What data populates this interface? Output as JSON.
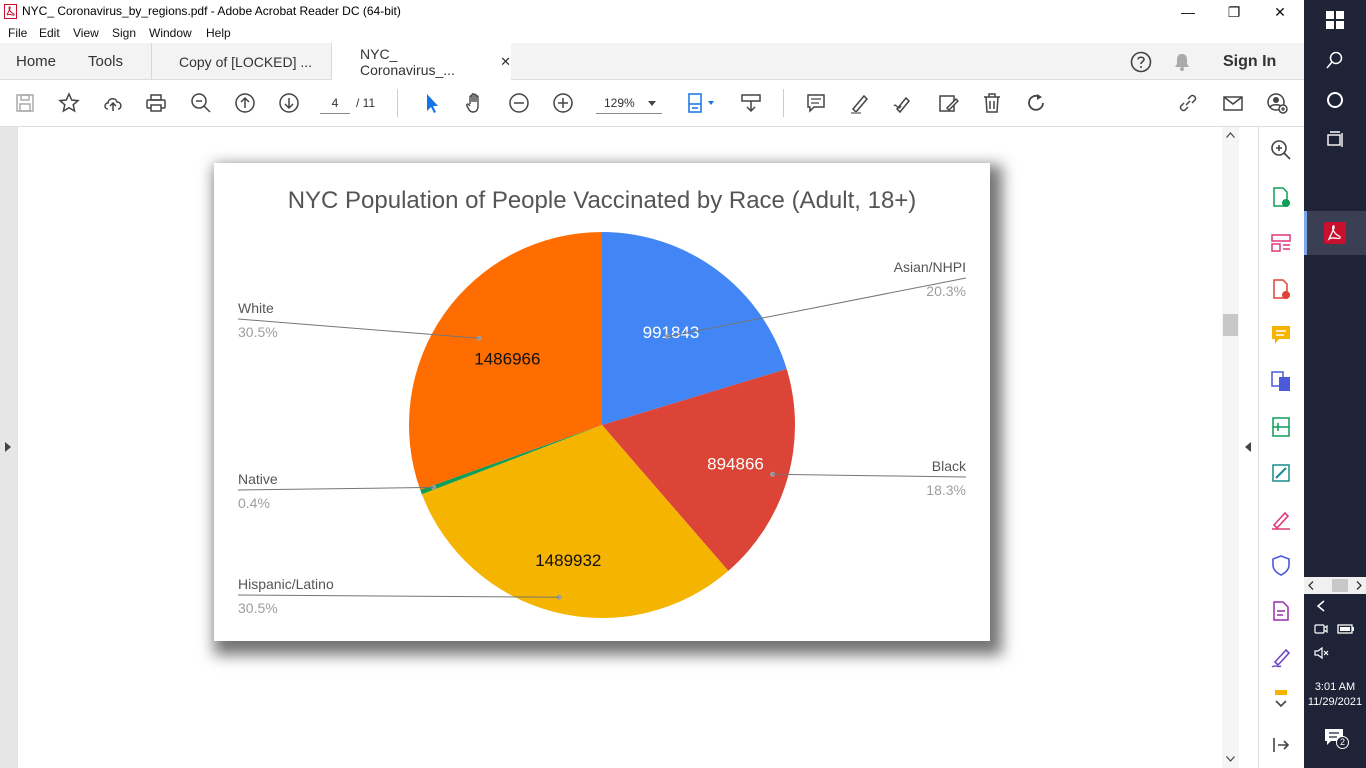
{
  "window": {
    "title": "NYC_ Coronavirus_by_regions.pdf - Adobe Acrobat Reader DC (64-bit)",
    "minimize": "—",
    "maximize": "❐",
    "close": "✕"
  },
  "menu": [
    "File",
    "Edit",
    "View",
    "Sign",
    "Window",
    "Help"
  ],
  "tabs": {
    "home": "Home",
    "tools": "Tools",
    "doc1": "Copy of [LOCKED] ...",
    "doc2": "NYC_ Coronavirus_...",
    "doc2_close": "✕",
    "sign_in": "Sign In"
  },
  "toolbar": {
    "page_current": "4",
    "page_total": "/ 11",
    "zoom": "129%"
  },
  "chart_data": {
    "type": "pie",
    "title": "NYC Population of People Vaccinated by Race (Adult, 18+)",
    "slices": [
      {
        "label": "Asian/NHPI",
        "value": 991843,
        "value_label": "991843",
        "percent": "20.3%",
        "color": "#4285f4"
      },
      {
        "label": "Black",
        "value": 894866,
        "value_label": "894866",
        "percent": "18.3%",
        "color": "#db4437"
      },
      {
        "label": "Hispanic/Latino",
        "value": 1489932,
        "value_label": "1489932",
        "percent": "30.5%",
        "color": "#f4b400"
      },
      {
        "label": "Native",
        "value": 19000,
        "value_label": "",
        "percent": "0.4%",
        "color": "#0f9d58"
      },
      {
        "label": "White",
        "value": 1486966,
        "value_label": "1486966",
        "percent": "30.5%",
        "color": "#ff6d01"
      }
    ]
  },
  "taskbar": {
    "time": "3:01 AM",
    "date": "11/29/2021",
    "notification_count": "2"
  }
}
